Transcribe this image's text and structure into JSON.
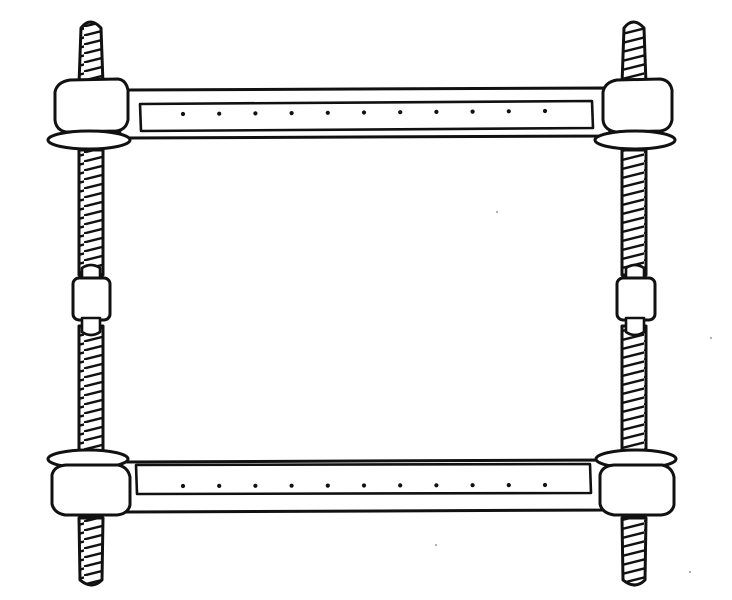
{
  "illustration": {
    "subject": "embroidery-scroll-frame",
    "style": "black-ink-line-drawing",
    "colors": {
      "ink": "#111111",
      "paper": "#ffffff"
    },
    "top_bar_tack_holes": 11,
    "bottom_bar_tack_holes": 11
  }
}
